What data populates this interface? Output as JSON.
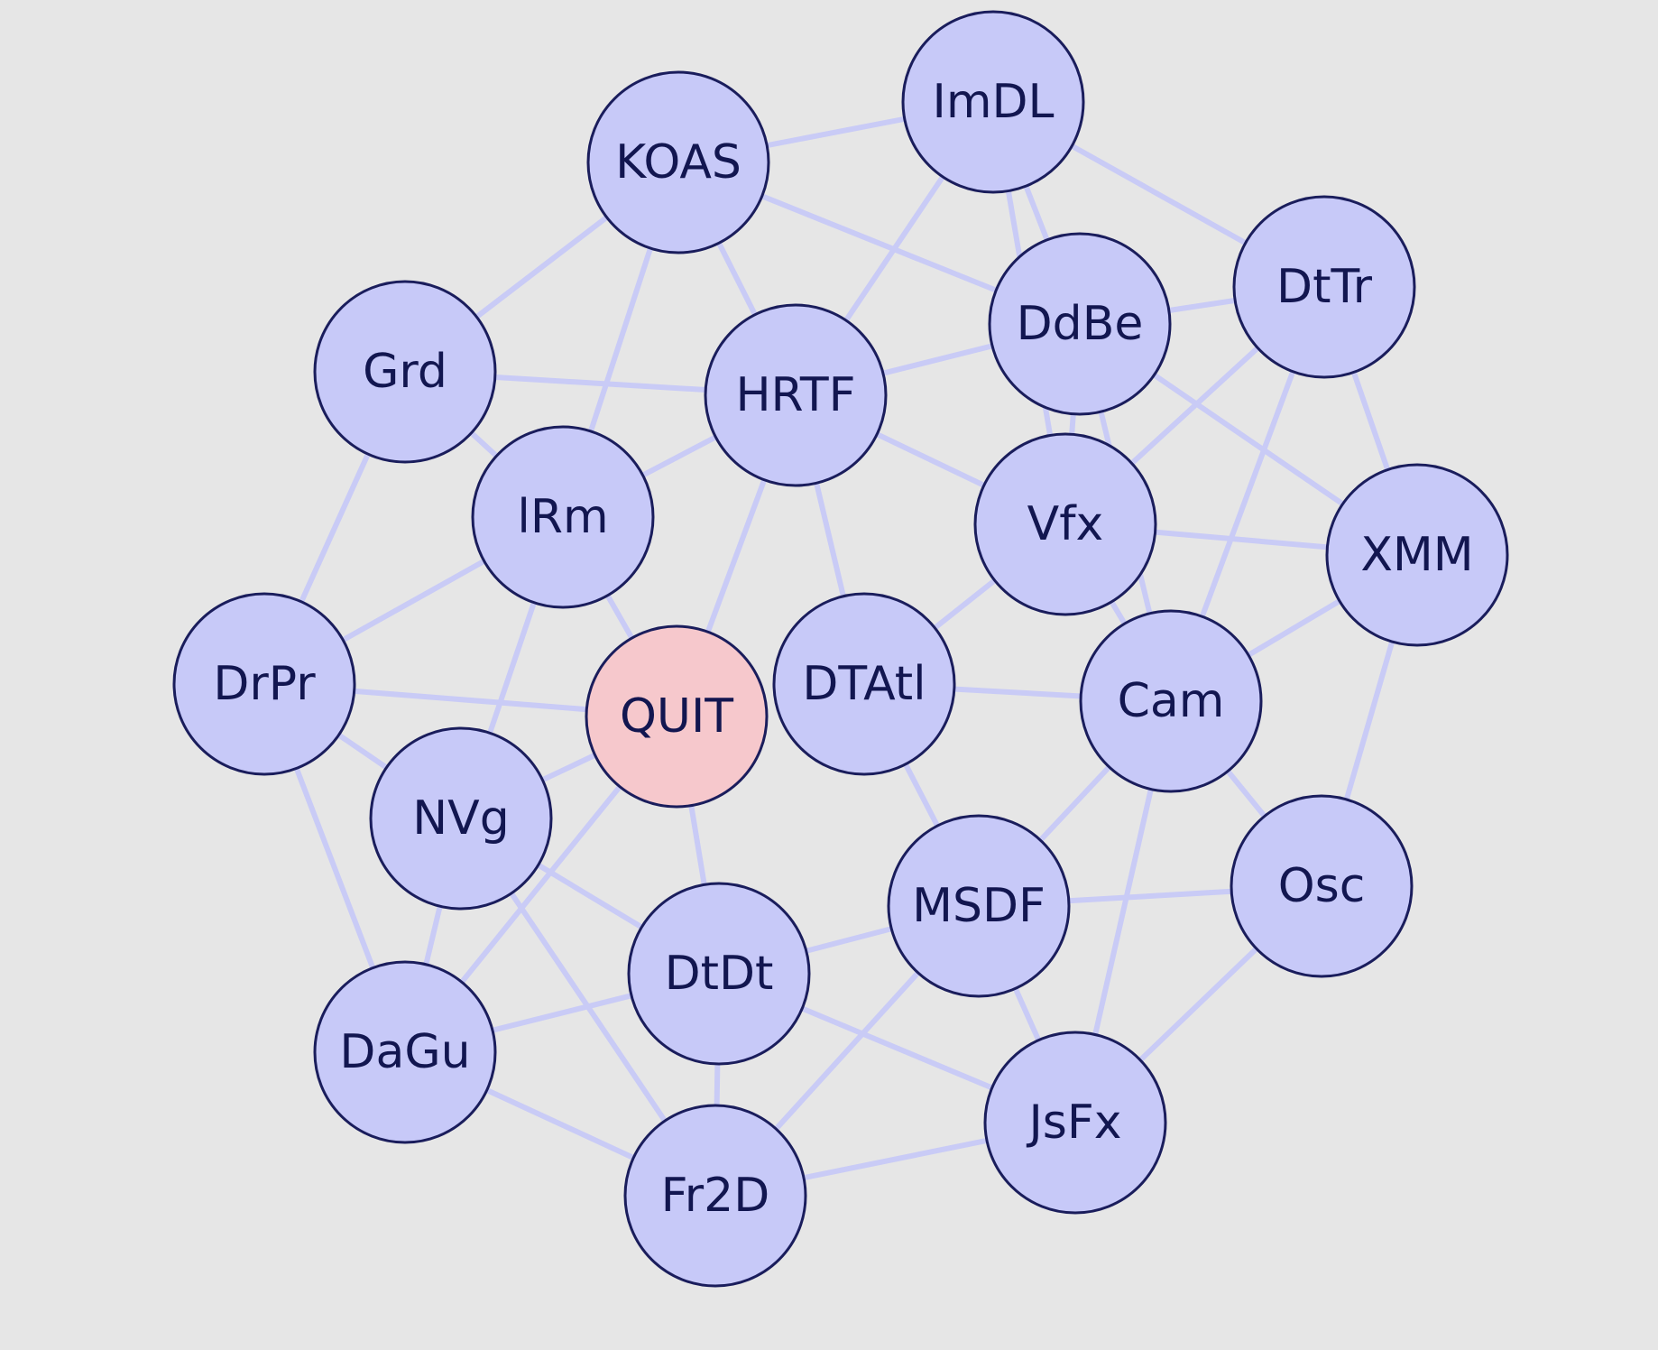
{
  "colors": {
    "background": "#e6e6e6",
    "node_fill": "#c7c9f8",
    "node_highlight_fill": "#f6c8cc",
    "node_stroke": "#1a1d5c",
    "edge": "#c9cbf6",
    "text": "#121650"
  },
  "nodes": [
    {
      "id": "ImDL",
      "label": "ImDL"
    },
    {
      "id": "KOAS",
      "label": "KOAS"
    },
    {
      "id": "DtTr",
      "label": "DtTr"
    },
    {
      "id": "DdBe",
      "label": "DdBe"
    },
    {
      "id": "Grd",
      "label": "Grd"
    },
    {
      "id": "HRTF",
      "label": "HRTF"
    },
    {
      "id": "IRm",
      "label": "lRm"
    },
    {
      "id": "Vfx",
      "label": "Vfx"
    },
    {
      "id": "XMM",
      "label": "XMM"
    },
    {
      "id": "DrPr",
      "label": "DrPr"
    },
    {
      "id": "QUIT",
      "label": "QUIT",
      "highlight": true
    },
    {
      "id": "DTAtl",
      "label": "DTAtl"
    },
    {
      "id": "Cam",
      "label": "Cam"
    },
    {
      "id": "NVg",
      "label": "NVg"
    },
    {
      "id": "Osc",
      "label": "Osc"
    },
    {
      "id": "MSDF",
      "label": "MSDF"
    },
    {
      "id": "DtDt",
      "label": "DtDt"
    },
    {
      "id": "DaGu",
      "label": "DaGu"
    },
    {
      "id": "JsFx",
      "label": "JsFx"
    },
    {
      "id": "Fr2D",
      "label": "Fr2D"
    }
  ],
  "edges": [
    [
      "KOAS",
      "ImDL"
    ],
    [
      "KOAS",
      "Grd"
    ],
    [
      "KOAS",
      "IRm"
    ],
    [
      "KOAS",
      "HRTF"
    ],
    [
      "KOAS",
      "DdBe"
    ],
    [
      "ImDL",
      "DtTr"
    ],
    [
      "ImDL",
      "DdBe"
    ],
    [
      "ImDL",
      "HRTF"
    ],
    [
      "ImDL",
      "Vfx"
    ],
    [
      "Grd",
      "HRTF"
    ],
    [
      "Grd",
      "IRm"
    ],
    [
      "Grd",
      "DrPr"
    ],
    [
      "HRTF",
      "DdBe"
    ],
    [
      "HRTF",
      "IRm"
    ],
    [
      "HRTF",
      "Vfx"
    ],
    [
      "HRTF",
      "DTAtl"
    ],
    [
      "HRTF",
      "QUIT"
    ],
    [
      "DdBe",
      "DtTr"
    ],
    [
      "DdBe",
      "Vfx"
    ],
    [
      "DdBe",
      "XMM"
    ],
    [
      "DdBe",
      "Cam"
    ],
    [
      "DtTr",
      "Vfx"
    ],
    [
      "DtTr",
      "XMM"
    ],
    [
      "DtTr",
      "Cam"
    ],
    [
      "IRm",
      "DrPr"
    ],
    [
      "IRm",
      "QUIT"
    ],
    [
      "IRm",
      "NVg"
    ],
    [
      "Vfx",
      "XMM"
    ],
    [
      "Vfx",
      "DTAtl"
    ],
    [
      "Vfx",
      "Cam"
    ],
    [
      "XMM",
      "Cam"
    ],
    [
      "XMM",
      "Osc"
    ],
    [
      "DrPr",
      "QUIT"
    ],
    [
      "DrPr",
      "NVg"
    ],
    [
      "DrPr",
      "DaGu"
    ],
    [
      "QUIT",
      "NVg"
    ],
    [
      "QUIT",
      "DtDt"
    ],
    [
      "QUIT",
      "DaGu"
    ],
    [
      "DTAtl",
      "Cam"
    ],
    [
      "DTAtl",
      "MSDF"
    ],
    [
      "Cam",
      "MSDF"
    ],
    [
      "Cam",
      "Osc"
    ],
    [
      "Cam",
      "JsFx"
    ],
    [
      "NVg",
      "DtDt"
    ],
    [
      "NVg",
      "DaGu"
    ],
    [
      "NVg",
      "Fr2D"
    ],
    [
      "Osc",
      "MSDF"
    ],
    [
      "Osc",
      "JsFx"
    ],
    [
      "MSDF",
      "DtDt"
    ],
    [
      "MSDF",
      "JsFx"
    ],
    [
      "MSDF",
      "Fr2D"
    ],
    [
      "DtDt",
      "DaGu"
    ],
    [
      "DtDt",
      "Fr2D"
    ],
    [
      "DtDt",
      "JsFx"
    ],
    [
      "DaGu",
      "Fr2D"
    ],
    [
      "JsFx",
      "Fr2D"
    ]
  ]
}
